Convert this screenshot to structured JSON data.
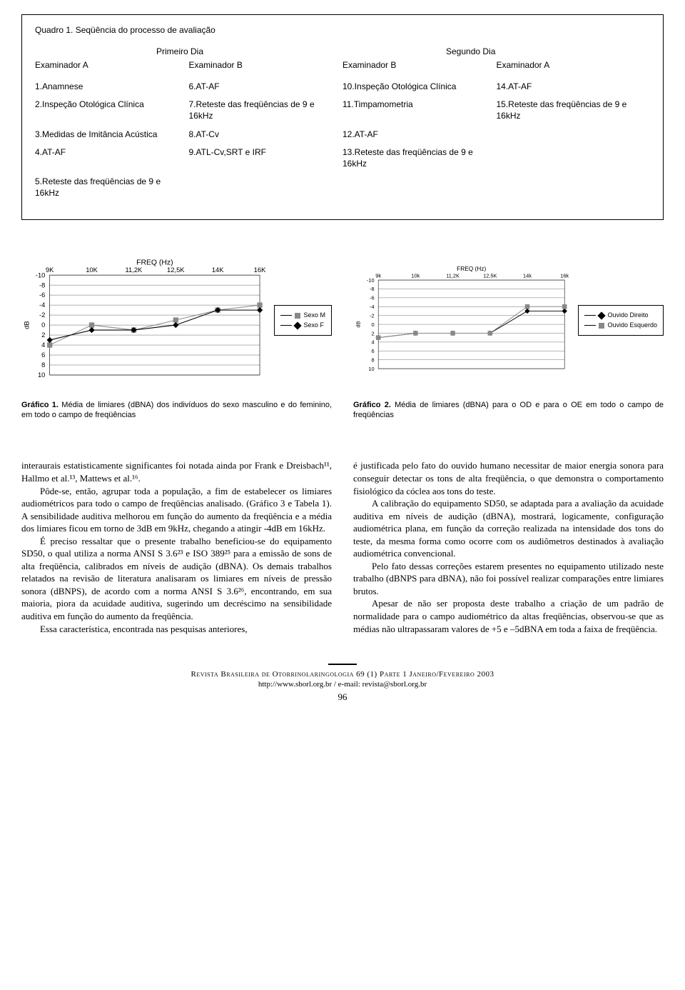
{
  "table": {
    "title": "Quadro 1. Seqüência do processo de avaliação",
    "day_headers": [
      "Primeiro Dia",
      "Segundo Dia"
    ],
    "examiner_headers": [
      "Examinador A",
      "Examinador B",
      "Examinador B",
      "Examinador A"
    ],
    "rows": [
      [
        "1.Anamnese",
        "6.AT-AF",
        "10.Inspeção Otológica Clínica",
        "14.AT-AF"
      ],
      [
        "2.Inspeção Otológica Clínica",
        "7.Reteste das freqüências de 9 e 16kHz",
        "11.Timpamometria",
        "15.Reteste das freqüências de 9 e 16kHz"
      ],
      [
        "3.Medidas de Imitância Acústica",
        "8.AT-Cv",
        "12.AT-AF",
        ""
      ],
      [
        "4.AT-AF",
        "9.ATL-Cv,SRT e IRF",
        "13.Reteste das freqüências de 9 e 16kHz",
        ""
      ],
      [
        "5.Reteste das freqüências de 9 e 16kHz",
        "",
        "",
        ""
      ]
    ]
  },
  "chart1": {
    "type": "line",
    "title": "FREQ (Hz)",
    "x_label": "",
    "y_label": "dB",
    "x_categories": [
      "9K",
      "10K",
      "11,2K",
      "12,5K",
      "14K",
      "16K"
    ],
    "y_ticks": [
      -10,
      -8,
      -6,
      -4,
      -2,
      0,
      2,
      4,
      6,
      8,
      10
    ],
    "ylim": [
      10,
      -10
    ],
    "series": [
      {
        "name": "Sexo M",
        "marker": "square",
        "color": "#888888",
        "values": [
          4,
          0,
          1,
          -1,
          -3,
          -4
        ]
      },
      {
        "name": "Sexo F",
        "marker": "diamond",
        "color": "#000000",
        "values": [
          3,
          1,
          1,
          0,
          -3,
          -3
        ]
      }
    ],
    "background_color": "#ffffff",
    "grid_color": "#000000",
    "font_size_axis": 9,
    "font_size_title": 10
  },
  "chart2": {
    "type": "line",
    "title": "FREQ (Hz)",
    "x_label": "",
    "y_label": "dB",
    "x_categories": [
      "9k",
      "10k",
      "11,2K",
      "12,5K",
      "14k",
      "16k"
    ],
    "y_ticks": [
      -10,
      -8,
      -6,
      -4,
      -2,
      0,
      2,
      4,
      6,
      8,
      10
    ],
    "ylim": [
      10,
      -10
    ],
    "series": [
      {
        "name": "Ouvido Direito",
        "marker": "diamond",
        "color": "#000000",
        "values": [
          3,
          2,
          2,
          2,
          -3,
          -3
        ]
      },
      {
        "name": "Ouvido Esquerdo",
        "marker": "square",
        "color": "#888888",
        "values": [
          3,
          2,
          2,
          2,
          -4,
          -4
        ]
      }
    ],
    "background_color": "#ffffff",
    "grid_color": "#000000",
    "font_size_axis": 8,
    "font_size_title": 9
  },
  "captions": {
    "c1_bold": "Gráfico 1.",
    "c1": " Média de limiares (dBNA) dos indivíduos do sexo masculino e do feminino, em todo o campo de freqüências",
    "c2_bold": "Gráfico 2.",
    "c2": " Média de limiares (dBNA) para o OD e para o OE em todo o campo de freqüências"
  },
  "body": {
    "left": [
      "interaurais estatisticamente significantes foi notada ainda por Frank e Dreisbach¹¹, Hallmo et al.¹³, Mattews et al.¹⁶.",
      "Pôde-se, então, agrupar toda a população, a fim de estabelecer os limiares audiométricos para todo o campo de freqüências analisado. (Gráfico 3 e Tabela 1). A sensibilidade auditiva melhorou em função do aumento da freqüência e a média dos limiares ficou em torno de 3dB em 9kHz, chegando a atingir -4dB em 16kHz.",
      "É preciso ressaltar que o presente trabalho beneficiou-se do equipamento SD50, o qual utiliza a norma ANSI S 3.6²³ e ISO 389²⁵ para a emissão de sons de alta freqüência, calibrados em níveis de audição (dBNA). Os demais trabalhos relatados na revisão de literatura analisaram os limiares em níveis de pressão sonora (dBNPS), de acordo com a norma ANSI S 3.6²⁶, encontrando, em sua maioria, piora da acuidade auditiva, sugerindo um decréscimo na sensibilidade auditiva em função do aumento da freqüência.",
      "Essa característica, encontrada nas pesquisas anteriores,"
    ],
    "right": [
      "é justificada pelo fato do ouvido humano necessitar de maior energia sonora para conseguir detectar os tons de alta freqüência, o que demonstra o comportamento fisiológico da cóclea aos tons do teste.",
      "A calibração do equipamento SD50, se adaptada para a avaliação da acuidade auditiva em níveis de audição (dBNA), mostrará, logicamente, configuração audiométrica plana, em função da correção realizada na intensidade dos tons do teste, da mesma forma como ocorre com os audiômetros destinados à avaliação audiométrica convencional.",
      "Pelo fato dessas correções estarem presentes no equipamento utilizado neste trabalho (dBNPS para dBNA), não foi possível realizar comparações entre limiares brutos.",
      "Apesar de não ser proposta deste trabalho a criação de um padrão de normalidade para o campo audiométrico da altas freqüências, observou-se que as médias não ultrapassaram valores de +5 e –5dBNA em toda a faixa de freqüência."
    ]
  },
  "footer": {
    "line1": "Revista Brasileira de Otorrinolaringologia 69 (1) Parte 1 Janeiro/Fevereiro 2003",
    "line2": "http://www.sborl.org.br  /  e-mail: revista@sborl.org.br",
    "page": "96"
  }
}
